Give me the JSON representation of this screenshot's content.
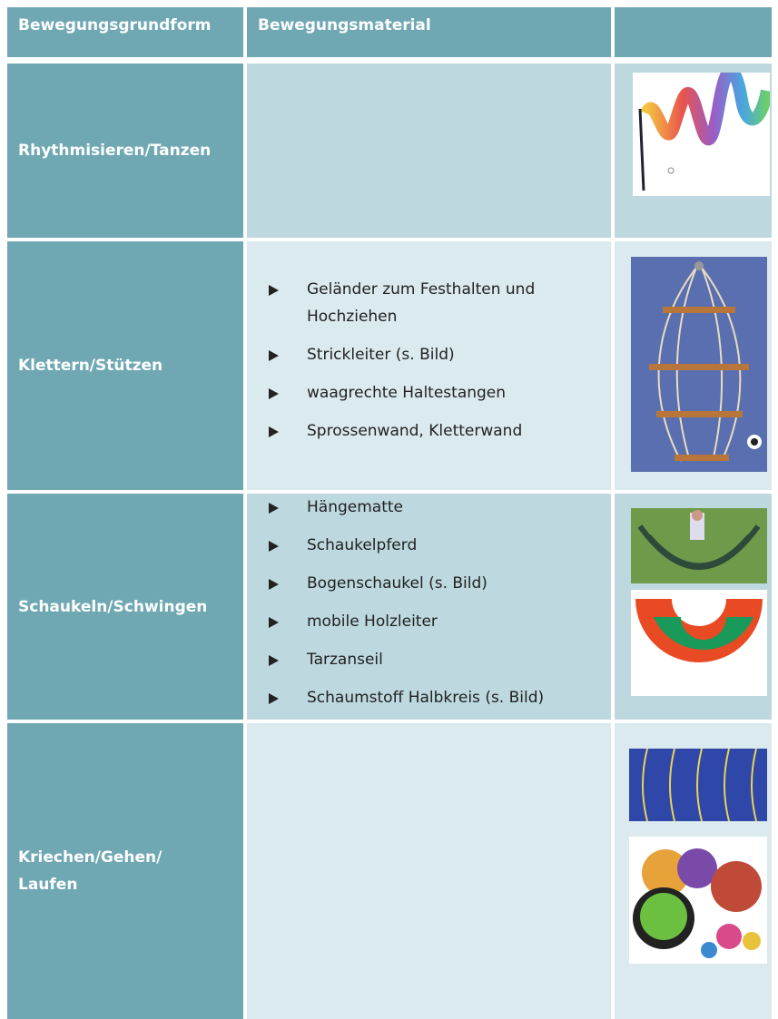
{
  "table": {
    "header": [
      "Bewegungsgrundform",
      "Bewegungsmaterial"
    ],
    "rows": [
      {
        "label": "Rhythmisieren/Tanzen",
        "items": []
      },
      {
        "label": "Klettern/Stützen",
        "items": [
          "Geländer zum Festhalten und Hochziehen",
          "Strickleiter (s. Bild)",
          "waagrechte Haltestangen",
          "Sprossenwand, Kletterwand"
        ]
      },
      {
        "label": "Schaukeln/Schwingen",
        "items": [
          "Hängematte",
          "Schaukelpferd",
          "Bogenschaukel (s. Bild)",
          "mobile Holzleiter",
          "Tarzanseil",
          "Schaumstoff Halbkreis (s. Bild)"
        ]
      },
      {
        "label": "Kriechen/Gehen/\nLaufen",
        "items": []
      }
    ]
  }
}
